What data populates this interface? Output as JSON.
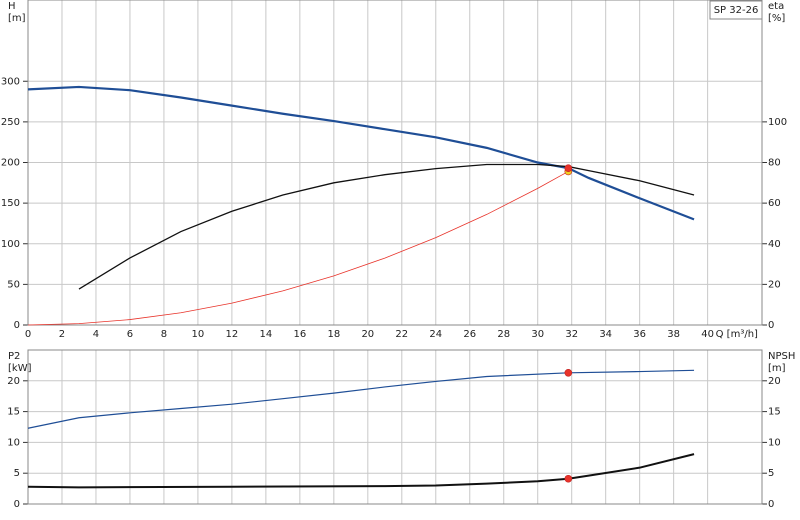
{
  "chart_data": [
    {
      "type": "line",
      "title": "SP 32-26",
      "ylabel": [
        "H",
        "[m]"
      ],
      "y2label": [
        "eta",
        "[%]"
      ],
      "xlabel": "Q [m³/h]",
      "xlim": [
        0,
        43.2
      ],
      "xticks": [
        0,
        2,
        4,
        6,
        8,
        10,
        12,
        14,
        16,
        18,
        20,
        22,
        24,
        26,
        28,
        30,
        32,
        34,
        36,
        38,
        40
      ],
      "ylim": [
        0,
        400
      ],
      "yticks": [
        0,
        50,
        100,
        150,
        200,
        250,
        300
      ],
      "y2lim": [
        0,
        160
      ],
      "y2ticks": [
        0,
        20,
        40,
        60,
        80,
        100
      ],
      "grid": true,
      "show_xtick_labels": true,
      "series": [
        {
          "color": "#1f4e96",
          "width": 2.2,
          "x": [
            0,
            3,
            6,
            9,
            12,
            15,
            18,
            21,
            24,
            27,
            30,
            31.8,
            33,
            36,
            39.2
          ],
          "values": [
            290,
            293,
            289,
            280,
            270,
            260,
            251,
            241,
            231,
            218,
            200,
            193,
            181,
            156,
            130
          ]
        },
        {
          "color": "#111111",
          "width": 1.3,
          "axis": "y2",
          "x": [
            3,
            6,
            9,
            12,
            15,
            18,
            21,
            24,
            27,
            30,
            31.8,
            33,
            36,
            39.2
          ],
          "values": [
            17.7,
            33,
            46,
            56,
            64,
            70,
            74,
            77,
            79,
            79,
            78,
            76,
            71,
            64
          ]
        },
        {
          "color": "#e8332a",
          "width": 0.8,
          "x": [
            0,
            3,
            6,
            9,
            12,
            15,
            18,
            21,
            24,
            27,
            30,
            31.8
          ],
          "values": [
            0,
            1.7,
            6.7,
            15.1,
            26.9,
            42,
            60.5,
            82.3,
            107.6,
            136.1,
            168.2,
            189
          ]
        },
        {
          "color": "#f0d020",
          "style": "point",
          "x": [
            31.8
          ],
          "values": [
            189
          ]
        },
        {
          "color": "#e8332a",
          "style": "point",
          "x": [
            31.8
          ],
          "values": [
            193
          ]
        }
      ]
    },
    {
      "type": "line",
      "ylabel": [
        "P2",
        "[kW]"
      ],
      "y2label": [
        "NPSH",
        "[m]"
      ],
      "xlim": [
        0,
        43.2
      ],
      "xticks": [
        0,
        2,
        4,
        6,
        8,
        10,
        12,
        14,
        16,
        18,
        20,
        22,
        24,
        26,
        28,
        30,
        32,
        34,
        36,
        38,
        40
      ],
      "ylim": [
        0,
        25
      ],
      "yticks": [
        0,
        5,
        10,
        15,
        20
      ],
      "y2lim": [
        0,
        25
      ],
      "y2ticks": [
        0,
        5,
        10,
        15,
        20
      ],
      "grid": true,
      "show_xtick_labels": false,
      "series": [
        {
          "color": "#1f4e96",
          "width": 1.2,
          "x": [
            0,
            3,
            6,
            9,
            12,
            15,
            18,
            21,
            24,
            27,
            31.8,
            36,
            39.2
          ],
          "values": [
            12.3,
            14,
            14.8,
            15.5,
            16.2,
            17.1,
            18,
            19,
            19.9,
            20.7,
            21.3,
            21.5,
            21.7
          ]
        },
        {
          "color": "#111111",
          "width": 2,
          "axis": "y2",
          "x": [
            0,
            3,
            12,
            21,
            24,
            27,
            30,
            31.8,
            33,
            36,
            39.2
          ],
          "values": [
            2.8,
            2.7,
            2.8,
            2.9,
            3,
            3.3,
            3.7,
            4.1,
            4.6,
            5.9,
            8.1
          ]
        },
        {
          "color": "#e8332a",
          "style": "point",
          "x": [
            31.8
          ],
          "values": [
            21.3
          ]
        },
        {
          "color": "#e8332a",
          "style": "point",
          "axis": "y2",
          "x": [
            31.8
          ],
          "values": [
            4.1
          ]
        }
      ]
    }
  ]
}
